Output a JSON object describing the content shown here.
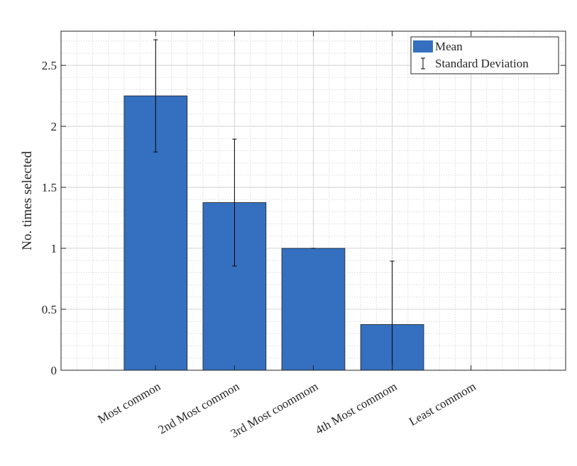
{
  "chart_data": {
    "type": "bar",
    "title": "",
    "xlabel": "",
    "ylabel": "No. times selected",
    "categories": [
      "Most common",
      "2nd Most common",
      "3rd Most coommom",
      "4th Most commom",
      "Least commom"
    ],
    "series": [
      {
        "name": "Mean",
        "values": [
          2.25,
          1.375,
          1.0,
          0.375,
          0
        ],
        "color": "#3470bf"
      }
    ],
    "error_bars": {
      "name": "Standard Deviation",
      "values": [
        0.46,
        0.52,
        0,
        0.52,
        0
      ]
    },
    "ylim": [
      0,
      2.78
    ],
    "xlim": [
      -0.2,
      6.2
    ],
    "yticks": [
      0,
      0.5,
      1,
      1.5,
      2,
      2.5
    ],
    "ytick_labels": [
      "0",
      "0.5",
      "1",
      "1.5",
      "2",
      "2.5"
    ],
    "grid": true,
    "minor_grid": true,
    "legend": {
      "placement": "top-right",
      "entries": [
        "Mean",
        "Standard Deviation"
      ]
    }
  }
}
